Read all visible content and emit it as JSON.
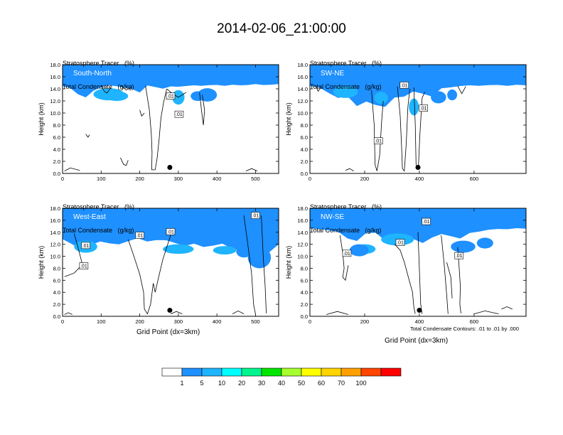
{
  "title": "2014-02-06_21:00:00",
  "colorbar": {
    "colors": [
      "#ffffff",
      "#1e90ff",
      "#1fb4ff",
      "#00ffff",
      "#00f58f",
      "#00e600",
      "#a8ff2f",
      "#ffff00",
      "#ffd400",
      "#ffa000",
      "#ff4500",
      "#ff0000"
    ],
    "labels": [
      "1",
      "5",
      "10",
      "20",
      "30",
      "40",
      "50",
      "60",
      "70",
      "100"
    ]
  },
  "contour_note": "Total Condensate Contours: .01 to .01 by .000",
  "chart_data": [
    {
      "type": "heatmap",
      "panel_label": "South-North",
      "title_line1": "Stratosphere Tracer   (%)",
      "title_line2": "Total Condensate   (g/kg)",
      "ylabel": "Height (km)",
      "xlabel": "",
      "xlim": [
        0,
        560
      ],
      "ylim": [
        0,
        18
      ],
      "xticks": [
        "0",
        "100",
        "200",
        "300",
        "400",
        "500"
      ],
      "yticks": [
        "0.0",
        "2.0",
        "4.0",
        "6.0",
        "8.0",
        "10.0",
        "12.0",
        "14.0",
        "16.0",
        "18.0"
      ],
      "tracer_base_km": [
        14.4,
        14.1,
        13.2,
        12.5,
        13.7,
        14.3,
        14.5,
        14.5,
        14.2,
        13.9,
        13.5,
        14.5,
        14.3,
        14.1,
        14.3,
        14.4,
        14.5,
        14.5,
        14.6,
        14.6,
        14.6,
        14.6,
        14.6,
        14.6,
        14.7,
        14.7,
        14.7,
        14.7,
        14.7
      ],
      "tracer_blobs": [
        [
          120,
          13.1,
          40,
          1.0
        ],
        [
          300,
          12.6,
          16,
          1.2
        ],
        [
          140,
          12.8,
          30,
          0.8
        ]
      ],
      "tracer_color_blobs": [
        [
          375,
          13.0,
          25,
          1.1,
          "#1e90ff"
        ],
        [
          350,
          12.8,
          18,
          0.8,
          "#1e90ff"
        ]
      ],
      "contour_labels": [
        [
          280,
          12.8,
          ".01"
        ],
        [
          302,
          9.8,
          ".01"
        ]
      ],
      "contour_paths": [
        [
          [
            215,
            14.5
          ],
          [
            225,
            10.5
          ],
          [
            230,
            6.5
          ],
          [
            232,
            3.5
          ],
          [
            231,
            0.6
          ],
          [
            240,
            0.6
          ],
          [
            245,
            2.5
          ],
          [
            250,
            5.5
          ],
          [
            255,
            9.2
          ],
          [
            262,
            11.8
          ],
          [
            270,
            14.0
          ]
        ],
        [
          [
            270,
            14.0
          ],
          [
            285,
            13.2
          ],
          [
            300,
            12.6
          ],
          [
            320,
            13.4
          ]
        ],
        [
          [
            100,
            14.6
          ],
          [
            108,
            13.6
          ],
          [
            115,
            13.3
          ],
          [
            125,
            14.2
          ]
        ],
        [
          [
            150,
            14.6
          ],
          [
            165,
            13.8
          ],
          [
            180,
            14.3
          ]
        ],
        [
          [
            355,
            13.4
          ],
          [
            360,
            10.5
          ],
          [
            365,
            8.0
          ],
          [
            368,
            10.5
          ],
          [
            362,
            13.0
          ]
        ],
        [
          [
            200,
            10.5
          ],
          [
            205,
            9.5
          ],
          [
            212,
            10.0
          ]
        ],
        [
          [
            5,
            0.4
          ],
          [
            20,
            0.9
          ],
          [
            45,
            0.5
          ]
        ],
        [
          [
            475,
            0.4
          ],
          [
            490,
            0.8
          ],
          [
            505,
            0.4
          ]
        ],
        [
          [
            60,
            6.5
          ],
          [
            66,
            6.0
          ],
          [
            70,
            6.4
          ]
        ],
        [
          [
            150,
            2.6
          ],
          [
            158,
            1.5
          ],
          [
            165,
            1.3
          ],
          [
            170,
            2.2
          ]
        ]
      ],
      "marker": [
        278,
        1.0
      ]
    },
    {
      "type": "heatmap",
      "panel_label": "SW-NE",
      "title_line1": "Stratosphere Tracer   (%)",
      "title_line2": "Total Condensate   (g/kg)",
      "ylabel": "Height (km)",
      "xlabel": "",
      "xlim": [
        0,
        790
      ],
      "ylim": [
        0,
        18
      ],
      "xticks": [
        "0",
        "200",
        "400",
        "600"
      ],
      "yticks": [
        "0.0",
        "2.0",
        "4.0",
        "6.0",
        "8.0",
        "10.0",
        "12.0",
        "14.0",
        "16.0",
        "18.0"
      ],
      "tracer_base_km": [
        14.4,
        14.2,
        13.4,
        12.4,
        12.8,
        11.2,
        11.8,
        11.4,
        11.0,
        12.5,
        12.8,
        13.5,
        13.2,
        12.8,
        14.0,
        14.3,
        14.5,
        14.5,
        14.6,
        14.6,
        14.6,
        14.6,
        14.6,
        14.6
      ],
      "tracer_blobs": [
        [
          380,
          11.0,
          18,
          1.4
        ],
        [
          260,
          12.5,
          25,
          1.0
        ],
        [
          130,
          13.5,
          45,
          1.0
        ]
      ],
      "tracer_color_blobs": [
        [
          470,
          12.6,
          28,
          1.0,
          "#1e90ff"
        ],
        [
          520,
          13.0,
          18,
          0.9,
          "#1e90ff"
        ]
      ],
      "contour_labels": [
        [
          345,
          14.6,
          ".01"
        ],
        [
          415,
          10.8,
          ".01"
        ],
        [
          250,
          5.4,
          ".01"
        ]
      ],
      "contour_paths": [
        [
          [
            225,
            13.8
          ],
          [
            235,
            8.0
          ],
          [
            238,
            1.5
          ],
          [
            245,
            0.4
          ],
          [
            255,
            3.0
          ],
          [
            262,
            8.5
          ],
          [
            268,
            12.0
          ]
        ],
        [
          [
            320,
            14.4
          ],
          [
            330,
            9.5
          ],
          [
            335,
            4.5
          ],
          [
            338,
            0.8
          ],
          [
            345,
            0.4
          ],
          [
            352,
            5.0
          ],
          [
            358,
            11.0
          ],
          [
            365,
            14.0
          ]
        ],
        [
          [
            380,
            14.2
          ],
          [
            385,
            8.0
          ],
          [
            388,
            1.5
          ],
          [
            396,
            0.6
          ],
          [
            402,
            6.5
          ],
          [
            410,
            12.5
          ],
          [
            420,
            13.5
          ]
        ],
        [
          [
            540,
            14.5
          ],
          [
            555,
            13.2
          ],
          [
            570,
            14.4
          ]
        ],
        [
          [
            20,
            14.6
          ],
          [
            30,
            13.6
          ],
          [
            40,
            14.2
          ]
        ],
        [
          [
            130,
            0.5
          ],
          [
            145,
            0.8
          ],
          [
            160,
            0.4
          ]
        ]
      ],
      "marker": [
        395,
        1.0
      ]
    },
    {
      "type": "heatmap",
      "panel_label": "West-East",
      "title_line1": "Stratosphere Tracer   (%)",
      "title_line2": "Total Condensate   (g/kg)",
      "ylabel": "Height (km)",
      "xlabel": "Grid Point (dx=3km)",
      "xlim": [
        0,
        560
      ],
      "ylim": [
        0,
        18
      ],
      "xticks": [
        "0",
        "100",
        "200",
        "300",
        "400",
        "500"
      ],
      "yticks": [
        "0.0",
        "2.0",
        "4.0",
        "6.0",
        "8.0",
        "10.0",
        "12.0",
        "14.0",
        "16.0",
        "18.0"
      ],
      "tracer_base_km": [
        12.8,
        12.0,
        11.2,
        11.8,
        12.5,
        12.2,
        11.9,
        12.6,
        13.0,
        12.4,
        12.8,
        12.6,
        12.2,
        11.8,
        12.0,
        11.6,
        11.8,
        12.0,
        11.4,
        10.9,
        10.4,
        9.5,
        10.6,
        12.0
      ],
      "tracer_blobs": [
        [
          60,
          11.6,
          30,
          1.0
        ],
        [
          300,
          11.2,
          40,
          0.8
        ],
        [
          420,
          11.0,
          30,
          0.7
        ]
      ],
      "tracer_color_blobs": [
        [
          510,
          9.8,
          30,
          1.8,
          "#1e90ff"
        ],
        [
          470,
          10.8,
          20,
          1.0,
          "#1e90ff"
        ]
      ],
      "contour_labels": [
        [
          60,
          11.8,
          ".01"
        ],
        [
          55,
          8.4,
          ".01"
        ],
        [
          200,
          13.5,
          ".01"
        ],
        [
          280,
          14.1,
          ".01"
        ],
        [
          500,
          16.8,
          ".01"
        ]
      ],
      "contour_paths": [
        [
          [
            30,
            13.8
          ],
          [
            40,
            11.5
          ],
          [
            50,
            9.0
          ],
          [
            45,
            8.2
          ],
          [
            30,
            7.2
          ],
          [
            5,
            6.6
          ]
        ],
        [
          [
            170,
            12.8
          ],
          [
            185,
            10.0
          ],
          [
            200,
            7.0
          ],
          [
            210,
            4.0
          ],
          [
            212,
            1.2
          ],
          [
            220,
            0.4
          ],
          [
            228,
            2.0
          ],
          [
            235,
            5.5
          ],
          [
            240,
            4.0
          ],
          [
            250,
            6.8
          ],
          [
            260,
            9.5
          ],
          [
            270,
            11.5
          ],
          [
            280,
            13.5
          ]
        ],
        [
          [
            470,
            16.8
          ],
          [
            480,
            12.0
          ],
          [
            490,
            7.0
          ],
          [
            495,
            2.0
          ],
          [
            500,
            0.4
          ]
        ],
        [
          [
            515,
            16.8
          ],
          [
            520,
            10.0
          ],
          [
            525,
            5.0
          ],
          [
            528,
            0.5
          ]
        ],
        [
          [
            440,
            0.4
          ],
          [
            455,
            0.9
          ],
          [
            470,
            0.4
          ]
        ],
        [
          [
            280,
            0.4
          ],
          [
            295,
            0.8
          ],
          [
            310,
            0.4
          ]
        ],
        [
          [
            5,
            0.3
          ],
          [
            15,
            0.6
          ],
          [
            25,
            0.3
          ]
        ]
      ],
      "marker": [
        278,
        1.0
      ]
    },
    {
      "type": "heatmap",
      "panel_label": "NW-SE",
      "title_line1": "Stratosphere Tracer   (%)",
      "title_line2": "Total Condensate   (g/kg)",
      "ylabel": "Height (km)",
      "xlabel": "Grid Point (dx=3km)",
      "xlim": [
        0,
        790
      ],
      "ylim": [
        0,
        18
      ],
      "xticks": [
        "0",
        "200",
        "400",
        "600"
      ],
      "yticks": [
        "0.0",
        "2.0",
        "4.0",
        "6.0",
        "8.0",
        "10.0",
        "12.0",
        "14.0",
        "16.0",
        "18.0"
      ],
      "tracer_base_km": [
        14.6,
        14.5,
        14.4,
        14.0,
        13.0,
        12.6,
        13.8,
        14.0,
        12.6,
        12.2,
        12.4,
        12.8,
        12.2,
        13.2,
        13.6,
        13.4,
        13.0,
        13.8,
        14.2,
        14.4,
        14.5,
        14.6,
        14.6,
        14.6
      ],
      "tracer_blobs": [
        [
          320,
          12.8,
          60,
          1.0
        ],
        [
          200,
          11.2,
          40,
          0.8
        ]
      ],
      "tracer_color_blobs": [
        [
          180,
          11.0,
          35,
          1.0,
          "#1e90ff"
        ],
        [
          560,
          11.6,
          45,
          1.0,
          "#1e90ff"
        ],
        [
          640,
          12.2,
          30,
          0.9,
          "#1e90ff"
        ]
      ],
      "contour_labels": [
        [
          135,
          10.5,
          ".01"
        ],
        [
          330,
          12.3,
          ".01"
        ],
        [
          425,
          15.8,
          ".01"
        ],
        [
          545,
          10.1,
          ".01"
        ]
      ],
      "contour_paths": [
        [
          [
            110,
            13.5
          ],
          [
            120,
            10.5
          ],
          [
            125,
            8.0
          ],
          [
            120,
            6.5
          ],
          [
            130,
            6.0
          ],
          [
            140,
            8.5
          ]
        ],
        [
          [
            310,
            12.0
          ],
          [
            330,
            11.0
          ],
          [
            345,
            9.0
          ],
          [
            360,
            6.5
          ],
          [
            375,
            4.0
          ],
          [
            380,
            1.5
          ],
          [
            385,
            0.4
          ]
        ],
        [
          [
            395,
            14.0
          ],
          [
            400,
            8.0
          ],
          [
            405,
            2.0
          ],
          [
            410,
            0.4
          ]
        ],
        [
          [
            480,
            13.5
          ],
          [
            490,
            9.0
          ],
          [
            500,
            3.5
          ],
          [
            505,
            0.4
          ]
        ],
        [
          [
            500,
            9.0
          ],
          [
            515,
            6.5
          ],
          [
            520,
            3.0
          ]
        ],
        [
          [
            540,
            11.5
          ],
          [
            545,
            8.5
          ],
          [
            550,
            5.0
          ],
          [
            548,
            2.0
          ],
          [
            552,
            0.5
          ]
        ],
        [
          [
            600,
            0.4
          ],
          [
            640,
            0.9
          ],
          [
            690,
            0.4
          ]
        ],
        [
          [
            60,
            0.3
          ],
          [
            100,
            0.8
          ],
          [
            140,
            0.3
          ]
        ],
        [
          [
            700,
            1.2
          ],
          [
            720,
            1.6
          ],
          [
            740,
            1.2
          ]
        ]
      ],
      "marker": [
        400,
        1.0
      ]
    }
  ]
}
